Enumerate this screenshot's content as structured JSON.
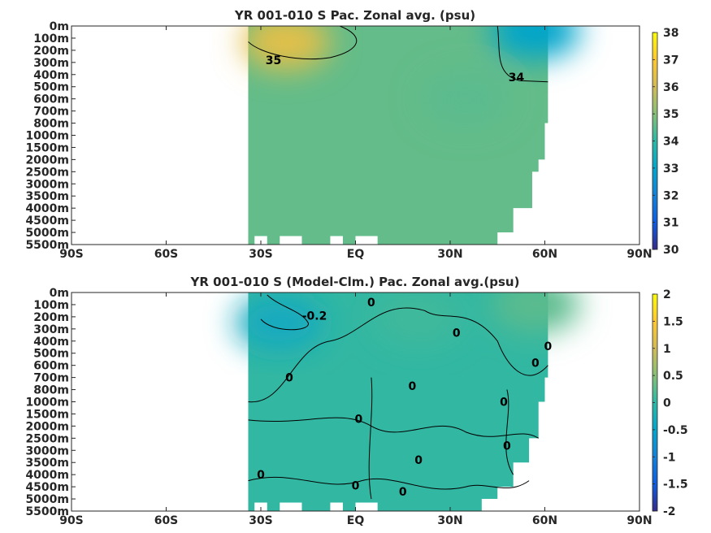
{
  "chart_data": [
    {
      "type": "heatmap",
      "title": "YR 001-010 S Pac. Zonal avg. (psu)",
      "xlabel": "",
      "ylabel": "",
      "x_ticks": [
        "90S",
        "60S",
        "30S",
        "EQ",
        "30N",
        "60N",
        "90N"
      ],
      "x_tick_values": [
        -90,
        -60,
        -30,
        0,
        30,
        60,
        90
      ],
      "xlim": [
        -90,
        90
      ],
      "y_ticks": [
        "0m",
        "100m",
        "200m",
        "300m",
        "400m",
        "500m",
        "600m",
        "700m",
        "800m",
        "1000m",
        "1500m",
        "2000m",
        "2500m",
        "3000m",
        "3500m",
        "4000m",
        "4500m",
        "5000m",
        "5500m"
      ],
      "colorbar": {
        "ticks": [
          "30",
          "31",
          "32",
          "33",
          "34",
          "35",
          "36",
          "37",
          "38"
        ],
        "range": [
          30,
          38
        ],
        "colormap": "parula"
      },
      "data_extent_lat": [
        -34,
        61
      ],
      "base_value": 34.6,
      "features": [
        {
          "lat": -22,
          "depth_level": 1.3,
          "value": 36.4
        },
        {
          "lat": 57,
          "depth_level": 0.4,
          "value": 33.0
        },
        {
          "lat": 35,
          "depth_level": 6.0,
          "value": 34.5
        }
      ],
      "contours": [
        {
          "label": "35",
          "level": 35,
          "label_lat": -26,
          "label_depth_level": 2.8
        },
        {
          "label": "34",
          "level": 34,
          "label_lat": 51,
          "label_depth_level": 4.2
        }
      ],
      "grid": false,
      "legend": "none"
    },
    {
      "type": "heatmap",
      "title": "YR 001-010 S (Model-Clm.) Pac. Zonal avg.(psu)",
      "xlabel": "",
      "ylabel": "",
      "x_ticks": [
        "90S",
        "60S",
        "30S",
        "EQ",
        "30N",
        "60N",
        "90N"
      ],
      "x_tick_values": [
        -90,
        -60,
        -30,
        0,
        30,
        60,
        90
      ],
      "xlim": [
        -90,
        90
      ],
      "y_ticks": [
        "0m",
        "100m",
        "200m",
        "300m",
        "400m",
        "500m",
        "600m",
        "700m",
        "800m",
        "1000m",
        "1500m",
        "2000m",
        "2500m",
        "3000m",
        "3500m",
        "4000m",
        "4500m",
        "5000m",
        "5500m"
      ],
      "colorbar": {
        "ticks": [
          "-2",
          "-1.5",
          "-1",
          "-0.5",
          "0",
          "0.5",
          "1",
          "1.5",
          "2"
        ],
        "range": [
          -2,
          2
        ],
        "colormap": "parula"
      },
      "data_extent_lat": [
        -34,
        61
      ],
      "base_value": 0.02,
      "features": [
        {
          "lat": -24,
          "depth_level": 2.5,
          "value": -0.35
        },
        {
          "lat": 20,
          "depth_level": 2.0,
          "value": 0.1
        },
        {
          "lat": 57,
          "depth_level": 1.0,
          "value": 0.25
        }
      ],
      "contours": [
        {
          "label": "-0.2",
          "level": -0.2,
          "label_lat": -13,
          "label_depth_level": 1.9
        },
        {
          "label": "0",
          "level": 0,
          "label_lat": 5,
          "label_depth_level": 0.8
        },
        {
          "label": "0",
          "level": 0,
          "label_lat": 32,
          "label_depth_level": 3.3
        },
        {
          "label": "0",
          "level": 0,
          "label_lat": 61,
          "label_depth_level": 4.4
        },
        {
          "label": "0",
          "level": 0,
          "label_lat": 57,
          "label_depth_level": 5.8
        },
        {
          "label": "0",
          "level": 0,
          "label_lat": -21,
          "label_depth_level": 7.0
        },
        {
          "label": "0",
          "level": 0,
          "label_lat": 18,
          "label_depth_level": 7.7
        },
        {
          "label": "0",
          "level": 0,
          "label_lat": 47,
          "label_depth_level": 9.0
        },
        {
          "label": "0",
          "level": 0,
          "label_lat": 1,
          "label_depth_level": 10.4
        },
        {
          "label": "0",
          "level": 0,
          "label_lat": 48,
          "label_depth_level": 12.6
        },
        {
          "label": "0",
          "level": 0,
          "label_lat": 20,
          "label_depth_level": 13.8
        },
        {
          "label": "0",
          "level": 0,
          "label_lat": -30,
          "label_depth_level": 15.0
        },
        {
          "label": "0",
          "level": 0,
          "label_lat": 0,
          "label_depth_level": 15.9
        },
        {
          "label": "0",
          "level": 0,
          "label_lat": 15,
          "label_depth_level": 16.4
        }
      ],
      "grid": false,
      "legend": "none"
    }
  ]
}
